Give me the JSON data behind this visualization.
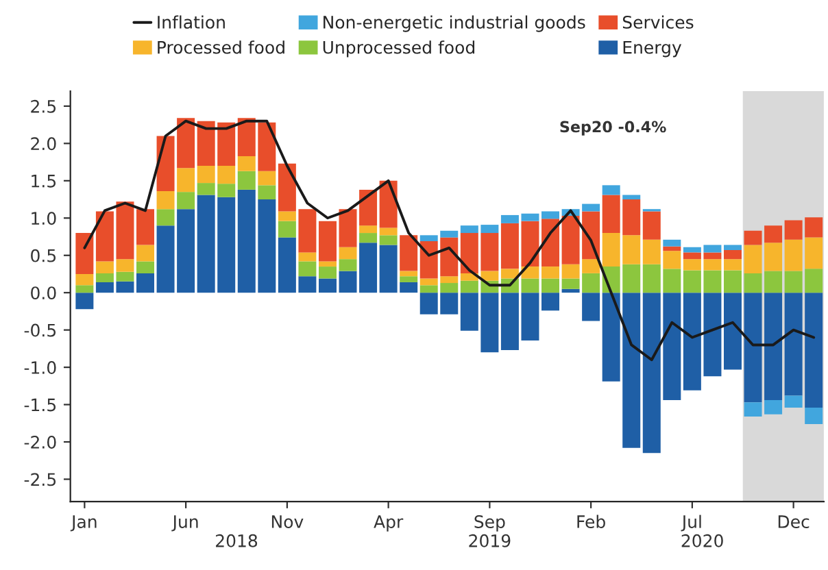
{
  "chart_data": {
    "type": "bar",
    "stacked": true,
    "categories": [
      "Jan",
      null,
      null,
      null,
      null,
      "Jun",
      null,
      null,
      null,
      null,
      "Nov",
      null,
      null,
      null,
      null,
      "Apr",
      null,
      null,
      null,
      null,
      "Sep",
      null,
      null,
      null,
      null,
      "Feb",
      null,
      null,
      null,
      null,
      "Jul",
      null,
      null,
      null,
      null,
      "Dec",
      null
    ],
    "series": [
      {
        "name": "Energy",
        "color": "#1f5fa6",
        "values": [
          -0.22,
          0.14,
          0.15,
          0.26,
          0.9,
          1.12,
          1.31,
          1.28,
          1.38,
          1.25,
          0.74,
          0.22,
          0.19,
          0.29,
          0.67,
          0.64,
          0.14,
          -0.29,
          -0.29,
          -0.51,
          -0.8,
          -0.77,
          -0.64,
          -0.24,
          0.05,
          -0.38,
          -1.19,
          -2.08,
          -2.15,
          -1.44,
          -1.31,
          -1.12,
          -1.03,
          -1.47,
          -1.44,
          -1.38,
          -1.54
        ]
      },
      {
        "name": "Unprocessed food",
        "color": "#8cc63e",
        "values": [
          0.1,
          0.12,
          0.13,
          0.16,
          0.22,
          0.23,
          0.16,
          0.18,
          0.25,
          0.19,
          0.22,
          0.2,
          0.16,
          0.16,
          0.13,
          0.13,
          0.08,
          0.1,
          0.13,
          0.16,
          0.16,
          0.19,
          0.19,
          0.19,
          0.14,
          0.26,
          0.35,
          0.38,
          0.38,
          0.32,
          0.3,
          0.3,
          0.3,
          0.26,
          0.29,
          0.29,
          0.32
        ]
      },
      {
        "name": "Processed food",
        "color": "#f7b52c",
        "values": [
          0.15,
          0.16,
          0.17,
          0.22,
          0.24,
          0.32,
          0.23,
          0.24,
          0.2,
          0.19,
          0.13,
          0.12,
          0.07,
          0.16,
          0.1,
          0.1,
          0.07,
          0.09,
          0.09,
          0.1,
          0.13,
          0.13,
          0.16,
          0.16,
          0.19,
          0.19,
          0.45,
          0.39,
          0.33,
          0.24,
          0.15,
          0.15,
          0.15,
          0.38,
          0.38,
          0.42,
          0.42
        ]
      },
      {
        "name": "Services",
        "color": "#e84e2b",
        "values": [
          0.55,
          0.67,
          0.77,
          0.48,
          0.74,
          0.67,
          0.6,
          0.58,
          0.51,
          0.65,
          0.64,
          0.58,
          0.54,
          0.51,
          0.48,
          0.63,
          0.48,
          0.5,
          0.52,
          0.54,
          0.51,
          0.61,
          0.61,
          0.64,
          0.65,
          0.64,
          0.51,
          0.48,
          0.38,
          0.06,
          0.09,
          0.09,
          0.12,
          0.19,
          0.23,
          0.26,
          0.27
        ]
      },
      {
        "name": "Non-energetic industrial goods",
        "color": "#41a6de",
        "values": [
          null,
          null,
          null,
          null,
          null,
          null,
          null,
          null,
          null,
          null,
          null,
          null,
          null,
          null,
          null,
          null,
          null,
          0.08,
          0.09,
          0.1,
          0.11,
          0.11,
          0.1,
          0.1,
          0.09,
          0.1,
          0.13,
          0.06,
          0.03,
          0.09,
          0.07,
          0.1,
          0.07,
          -0.19,
          -0.19,
          -0.16,
          -0.22
        ]
      },
      {
        "name": "Inflation",
        "type": "line",
        "color": "#1a1a1a",
        "values": [
          0.6,
          1.1,
          1.2,
          1.1,
          2.1,
          2.3,
          2.2,
          2.2,
          2.3,
          2.3,
          1.7,
          1.2,
          1.0,
          1.1,
          1.3,
          1.5,
          0.8,
          0.5,
          0.6,
          0.3,
          0.1,
          0.1,
          0.4,
          0.8,
          1.1,
          0.7,
          0.0,
          -0.7,
          -0.9,
          -0.4,
          -0.6,
          -0.5,
          -0.4,
          -0.7,
          -0.7,
          -0.5,
          -0.6
        ]
      }
    ],
    "ylim": [
      -2.8,
      2.7
    ],
    "yticks": [
      {
        "value": 2.5,
        "label": "2.5"
      },
      {
        "value": 2,
        "label": "2.0"
      },
      {
        "value": 1.5,
        "label": "1.5"
      },
      {
        "value": 1,
        "label": "1.0"
      },
      {
        "value": 0.5,
        "label": "0.5"
      },
      {
        "value": 0,
        "label": "0.0"
      },
      {
        "value": -0.5,
        "label": "-0.5"
      },
      {
        "value": -1,
        "label": "-1.0"
      },
      {
        "value": -1.5,
        "label": "-1.5"
      },
      {
        "value": -2,
        "label": "-2.0"
      },
      {
        "value": -2.5,
        "label": "-2.5"
      }
    ],
    "annotations": [
      "Sep20 -0.4%",
      "2018",
      "2019",
      "2020"
    ],
    "legend": "top",
    "grid": false,
    "line_style": "solid",
    "marker": "none"
  }
}
